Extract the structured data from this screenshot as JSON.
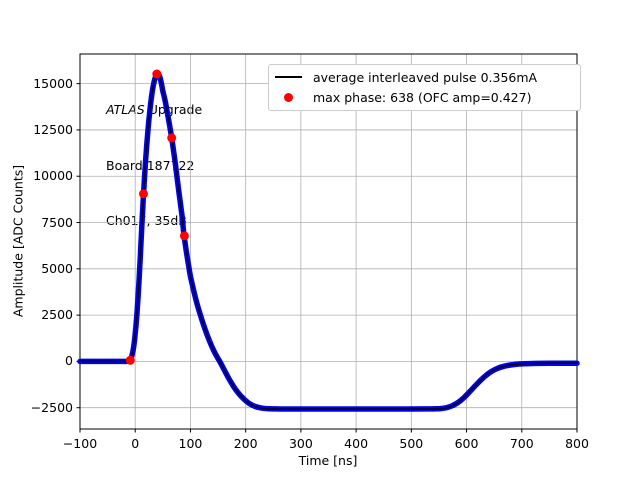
{
  "chart_data": {
    "type": "line",
    "title": "",
    "xlabel": "Time [ns]",
    "ylabel": "Amplitude [ADC Counts]",
    "xlim": [
      -100,
      800
    ],
    "ylim": [
      -3650,
      16600
    ],
    "grid": true,
    "grid_color": "#b0b0b0",
    "xticks": [
      -100,
      0,
      100,
      200,
      300,
      400,
      500,
      600,
      700,
      800
    ],
    "xtick_labels": [
      "−100",
      "0",
      "100",
      "200",
      "300",
      "400",
      "500",
      "600",
      "700",
      "800"
    ],
    "yticks": [
      -2500,
      0,
      2500,
      5000,
      7500,
      10000,
      12500,
      15000
    ],
    "ytick_labels": [
      "−2500",
      "0",
      "2500",
      "5000",
      "7500",
      "10000",
      "12500",
      "15000"
    ],
    "legend": {
      "position": "upper right",
      "entries": [
        {
          "marker": "line",
          "color": "#000000",
          "label": "average interleaved pulse 0.356mA"
        },
        {
          "marker": "dot",
          "color": "#ff0000",
          "label": "max phase: 638 (OFC amp=0.427)"
        }
      ]
    },
    "annotation": {
      "line1_italic": "ATLAS",
      "line1_rest": " Upgrade",
      "line2": "Board 187722",
      "line3": "Ch017, 35dB"
    },
    "series": [
      {
        "name": "average interleaved pulse",
        "type": "line",
        "band_color": "#0000ff",
        "line_color": "#000000",
        "points": [
          [
            -100,
            0
          ],
          [
            -85,
            0
          ],
          [
            -70,
            0
          ],
          [
            -55,
            0
          ],
          [
            -40,
            0
          ],
          [
            -30,
            0
          ],
          [
            -22,
            0
          ],
          [
            -17,
            0
          ],
          [
            -14,
            15
          ],
          [
            -11,
            50
          ],
          [
            -8,
            150
          ],
          [
            -6,
            310
          ],
          [
            -4,
            570
          ],
          [
            -2,
            950
          ],
          [
            0,
            1500
          ],
          [
            2,
            2150
          ],
          [
            4,
            2950
          ],
          [
            6,
            3900
          ],
          [
            8,
            4950
          ],
          [
            10,
            6100
          ],
          [
            12,
            7300
          ],
          [
            14,
            8500
          ],
          [
            16,
            9550
          ],
          [
            18,
            10500
          ],
          [
            20,
            11350
          ],
          [
            22,
            12100
          ],
          [
            24,
            12800
          ],
          [
            26,
            13400
          ],
          [
            28,
            13950
          ],
          [
            30,
            14400
          ],
          [
            32,
            14780
          ],
          [
            34,
            15080
          ],
          [
            36,
            15300
          ],
          [
            38,
            15470
          ],
          [
            40,
            15550
          ],
          [
            42,
            15520
          ],
          [
            44,
            15400
          ],
          [
            46,
            15200
          ],
          [
            48,
            14930
          ],
          [
            50,
            14600
          ],
          [
            54,
            14100
          ],
          [
            58,
            13450
          ],
          [
            62,
            12780
          ],
          [
            66,
            12070
          ],
          [
            70,
            11250
          ],
          [
            74,
            10350
          ],
          [
            78,
            9400
          ],
          [
            82,
            8500
          ],
          [
            85,
            7800
          ],
          [
            88,
            6900
          ],
          [
            92,
            6050
          ],
          [
            96,
            5300
          ],
          [
            100,
            4600
          ],
          [
            106,
            3800
          ],
          [
            112,
            3100
          ],
          [
            118,
            2500
          ],
          [
            124,
            1950
          ],
          [
            130,
            1450
          ],
          [
            136,
            1000
          ],
          [
            142,
            600
          ],
          [
            148,
            250
          ],
          [
            153,
            0
          ],
          [
            158,
            -280
          ],
          [
            164,
            -620
          ],
          [
            170,
            -950
          ],
          [
            176,
            -1250
          ],
          [
            182,
            -1520
          ],
          [
            188,
            -1750
          ],
          [
            194,
            -1950
          ],
          [
            200,
            -2120
          ],
          [
            208,
            -2300
          ],
          [
            216,
            -2420
          ],
          [
            224,
            -2490
          ],
          [
            232,
            -2530
          ],
          [
            242,
            -2555
          ],
          [
            256,
            -2566
          ],
          [
            272,
            -2570
          ],
          [
            300,
            -2570
          ],
          [
            340,
            -2570
          ],
          [
            380,
            -2570
          ],
          [
            420,
            -2570
          ],
          [
            460,
            -2570
          ],
          [
            500,
            -2568
          ],
          [
            530,
            -2565
          ],
          [
            545,
            -2561
          ],
          [
            555,
            -2544
          ],
          [
            565,
            -2490
          ],
          [
            575,
            -2380
          ],
          [
            585,
            -2210
          ],
          [
            595,
            -1960
          ],
          [
            605,
            -1660
          ],
          [
            615,
            -1340
          ],
          [
            625,
            -1030
          ],
          [
            635,
            -760
          ],
          [
            645,
            -545
          ],
          [
            655,
            -390
          ],
          [
            665,
            -285
          ],
          [
            675,
            -215
          ],
          [
            685,
            -170
          ],
          [
            700,
            -135
          ],
          [
            720,
            -112
          ],
          [
            750,
            -100
          ],
          [
            775,
            -97
          ],
          [
            800,
            -95
          ]
        ]
      },
      {
        "name": "max phase samples",
        "type": "scatter",
        "color": "#ff0000",
        "points": [
          [
            -9,
            60
          ],
          [
            15,
            9050
          ],
          [
            39,
            15520
          ],
          [
            66,
            12070
          ],
          [
            89,
            6780
          ]
        ]
      }
    ]
  }
}
